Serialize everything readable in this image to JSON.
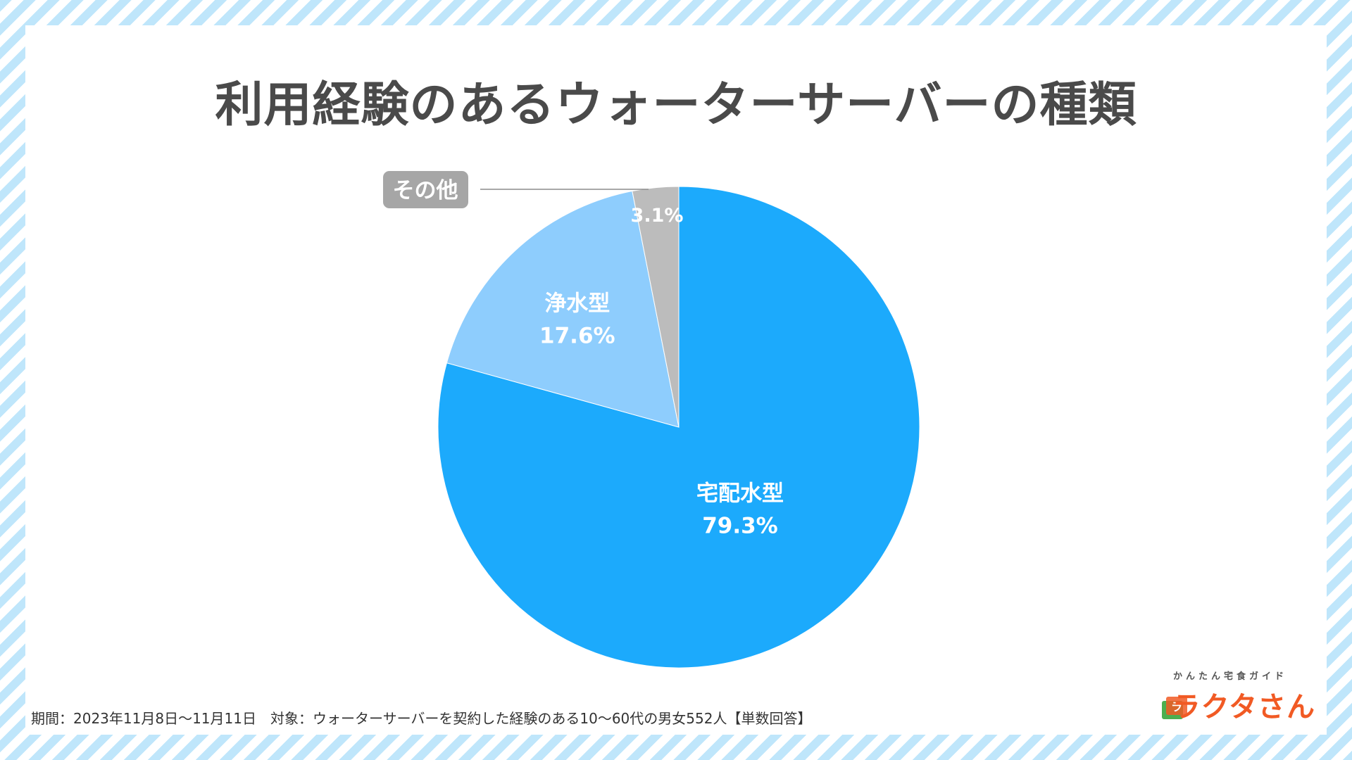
{
  "title": "利用経験のあるウォーターサーバーの種類",
  "chart_data": {
    "type": "pie",
    "title": "利用経験のあるウォーターサーバーの種類",
    "slices": [
      {
        "label": "宅配水型",
        "value": 79.3,
        "display": "79.3%",
        "color": "#1caafc"
      },
      {
        "label": "浄水型",
        "value": 17.6,
        "display": "17.6%",
        "color": "#8ecdfd"
      },
      {
        "label": "その他",
        "value": 3.1,
        "display": "3.1%",
        "color": "#bcbcbc"
      }
    ],
    "start": "12 o'clock, clockwise"
  },
  "callout": {
    "label": "その他"
  },
  "footnote": "期間：2023年11月8日〜11月11日　対象：ウォーターサーバーを契約した経験のある10〜60代の男女552人【単数回答】",
  "logo": {
    "tagline": "かんたん宅食ガイド",
    "brand": "ラクタさん",
    "mark": "ラ"
  }
}
